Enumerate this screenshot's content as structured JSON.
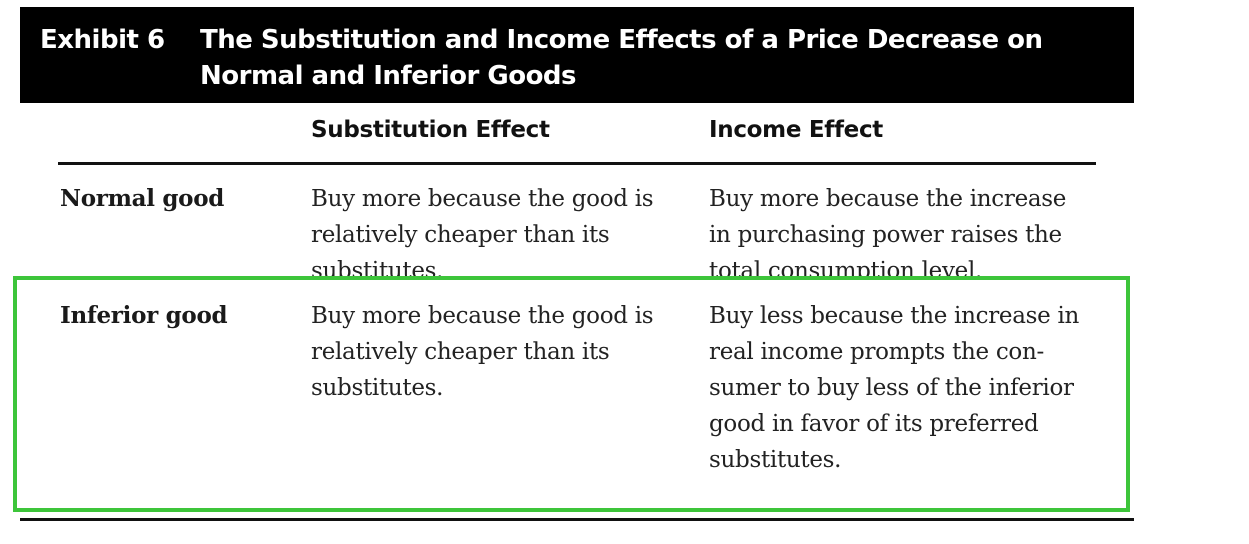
{
  "exhibit": {
    "label": "Exhibit 6",
    "title": "The Substitution and Income Effects of a Price Decrease on Normal and Inferior Goods"
  },
  "table": {
    "columns": [
      "",
      "Substitution Effect",
      "Income Effect"
    ],
    "rows": [
      {
        "label": "Normal good",
        "substitution": "Buy more because the good is relatively cheaper than its substitutes.",
        "income": "Buy more because the increase in purchasing power raises the total consumption level."
      },
      {
        "label": "Inferior good",
        "substitution": "Buy more because the good is relatively cheaper than its substitutes.",
        "income": "Buy less because the increase in real income prompts the con-sumer to buy less of the inferior good in favor of its preferred substitutes."
      }
    ]
  },
  "highlight": {
    "color": "#3dc53a",
    "target": "Inferior good"
  }
}
